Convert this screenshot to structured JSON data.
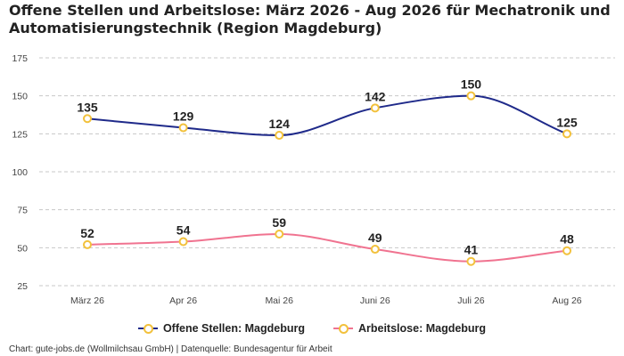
{
  "chart_data": {
    "type": "line",
    "title": "Offene Stellen und Arbeitslose: März 2026 - Aug 2026 für Mechatronik und Automatisierungstechnik (Region Magdeburg)",
    "categories": [
      "März 26",
      "Apr 26",
      "Mai 26",
      "Juni 26",
      "Juli 26",
      "Aug 26"
    ],
    "series": [
      {
        "name": "Offene Stellen: Magdeburg",
        "values": [
          135,
          129,
          124,
          142,
          150,
          125
        ],
        "color": "#1f2a8a"
      },
      {
        "name": "Arbeitslose: Magdeburg",
        "values": [
          52,
          54,
          59,
          49,
          41,
          48
        ],
        "color": "#f07390"
      }
    ],
    "marker_color": "#f2c13c",
    "y_ticks": [
      25,
      50,
      75,
      100,
      125,
      150,
      175
    ],
    "ylim": [
      25,
      175
    ],
    "grid": true,
    "legend_position": "bottom"
  },
  "footer": "Chart: gute-jobs.de (Wollmilchsau GmbH) | Datenquelle: Bundesagentur für Arbeit"
}
